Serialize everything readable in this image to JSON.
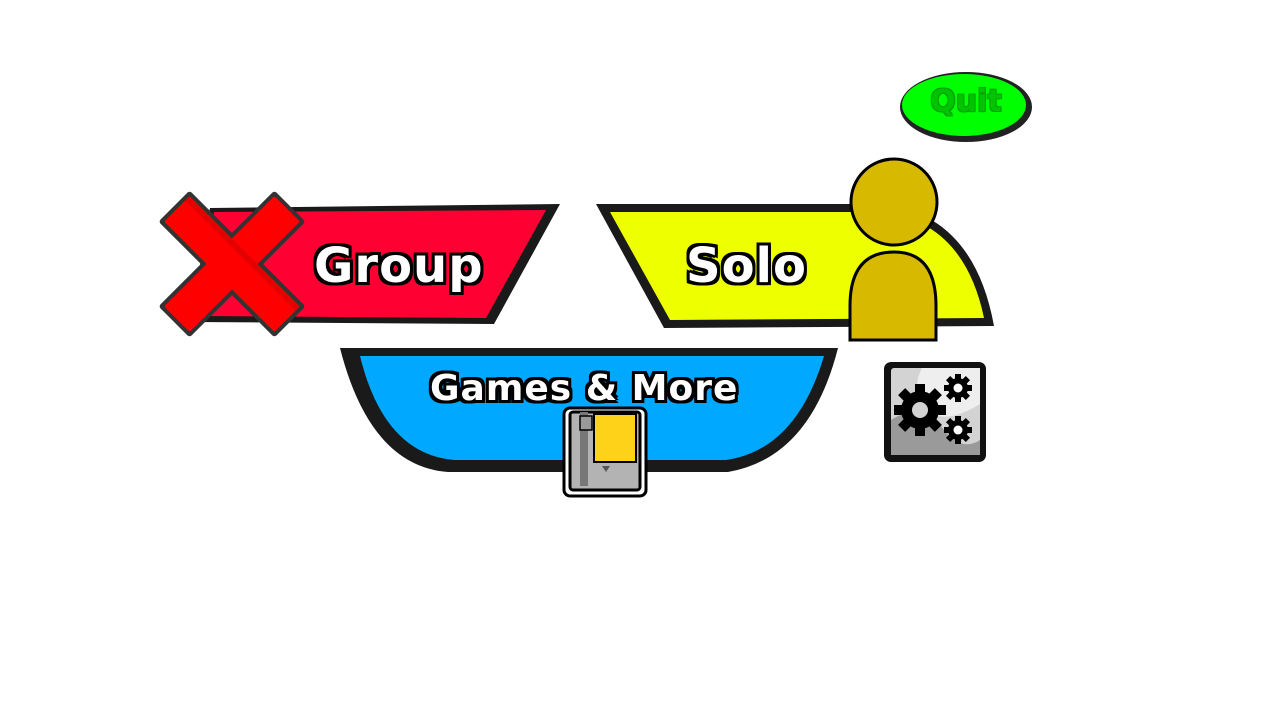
{
  "menu": {
    "group_label": "Group",
    "solo_label": "Solo",
    "games_label": "Games & More",
    "quit_label": "Quit"
  },
  "colors": {
    "group": "#ff0033",
    "solo": "#eeff00",
    "games": "#00a8ff",
    "quit": "#00ff00",
    "quit_text": "#00c400",
    "person": "#d7b900",
    "cross": "#ff0000",
    "outline": "#111111"
  },
  "icons": {
    "group_overlay": "red-x-icon",
    "solo_overlay": "person-icon",
    "games_overlay": "game-cartridge-icon",
    "settings": "gears-icon"
  }
}
